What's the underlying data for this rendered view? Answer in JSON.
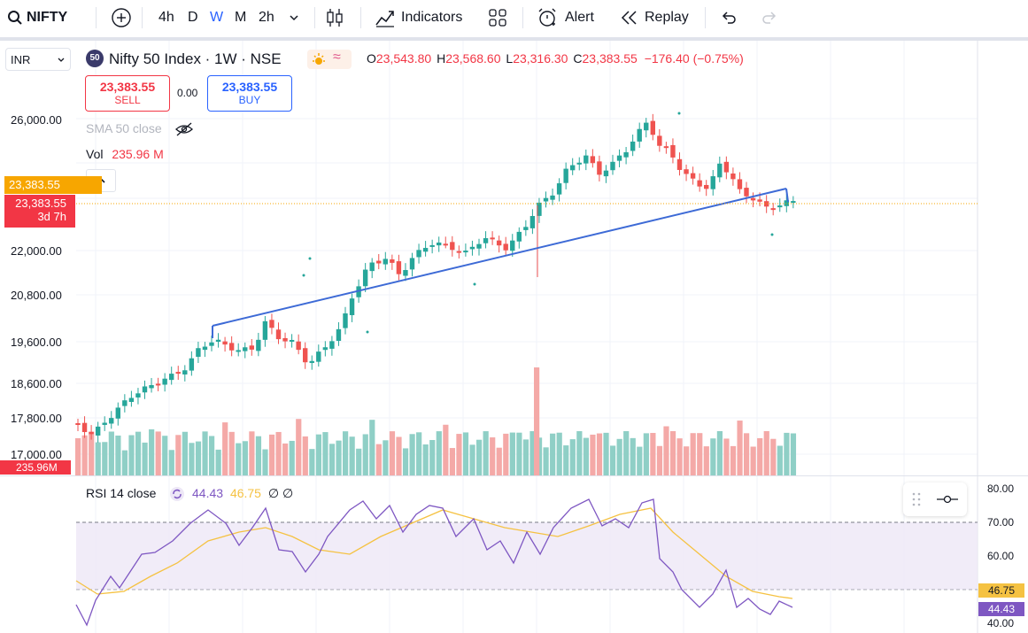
{
  "toolbar": {
    "symbol": "NIFTY",
    "intervals": [
      "4h",
      "D",
      "W",
      "M",
      "2h"
    ],
    "active_interval": "W",
    "indicators_label": "Indicators",
    "alert_label": "Alert",
    "replay_label": "Replay"
  },
  "currency": "INR",
  "legend": {
    "badge": "50",
    "title": "Nifty 50 Index · 1W · NSE",
    "o_label": "O",
    "o_value": "23,543.80",
    "h_label": "H",
    "h_value": "23,568.60",
    "l_label": "L",
    "l_value": "23,316.30",
    "c_label": "C",
    "c_value": "23,383.55",
    "change": "−176.40 (−0.75%)"
  },
  "trade": {
    "sell_price": "23,383.55",
    "sell_label": "SELL",
    "spread": "0.00",
    "buy_price": "23,383.55",
    "buy_label": "BUY"
  },
  "indicators": {
    "sma_label": "SMA 50 close",
    "vol_label": "Vol",
    "vol_value": "235.96 M"
  },
  "price_axis": {
    "ticks": [
      "26,000.00",
      "22,000.00",
      "20,800.00",
      "19,600.00",
      "18,600.00",
      "17,800.00",
      "17,000.00"
    ],
    "current_price_tag": "23,383.55",
    "current_price_tag_2": "23,383.55",
    "countdown": "3d 7h",
    "vol_tag": "235.96M"
  },
  "rsi": {
    "label": "RSI 14 close",
    "value": "44.43",
    "ma_value": "46.75",
    "extra": "∅ ∅",
    "ticks": [
      "80.00",
      "70.00",
      "60.00",
      "40.00"
    ]
  },
  "colors": {
    "up": "#26a69a",
    "down": "#ef5350",
    "up_vol": "#8fcfc6",
    "down_vol": "#f4a9a7",
    "trendline": "#3d6ad6",
    "rsi_line": "#7e57c2",
    "rsi_ma": "#f5c242"
  }
}
